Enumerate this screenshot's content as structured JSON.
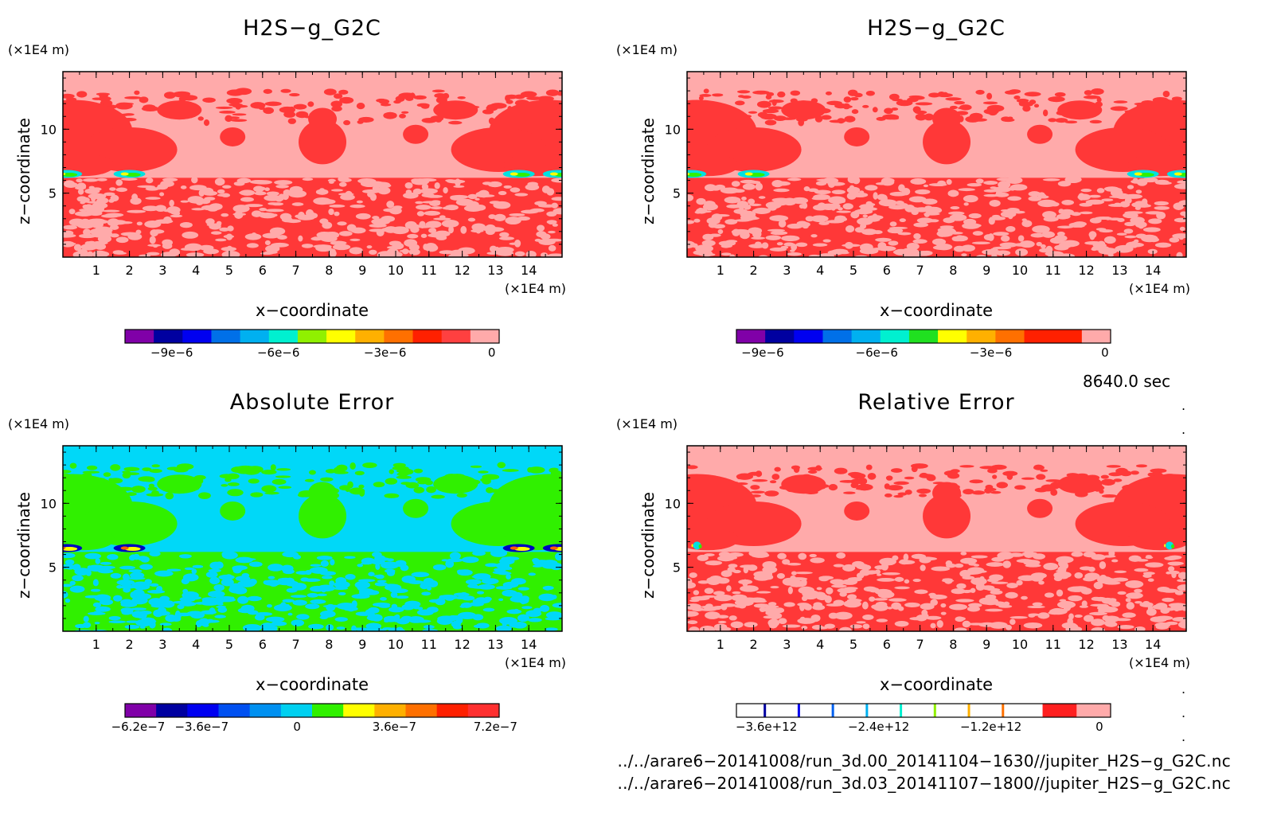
{
  "panels": [
    {
      "id": "p1",
      "title": "H2S−g_G2C",
      "z_unit": "(×1E4 m)",
      "x_unit": "(×1E4 m)",
      "xlabel": "x−coordinate",
      "ylabel": "z−coordinate",
      "field_colors": [
        "#ff3838",
        "#ffaaaa"
      ],
      "colorbar": {
        "colors": [
          "#8000a8",
          "#0000a0",
          "#0000f0",
          "#0070e8",
          "#00b0f0",
          "#00f0d0",
          "#90f000",
          "#ffff00",
          "#ffb000",
          "#ff7000",
          "#ff2000",
          "#ff4040",
          "#ffaaaa"
        ],
        "labels": [
          "−9e−6",
          "−6e−6",
          "−3e−6",
          "0"
        ],
        "label_pos": [
          0.125,
          0.41,
          0.695,
          0.98
        ]
      }
    },
    {
      "id": "p2",
      "title": "H2S−g_G2C",
      "z_unit": "(×1E4 m)",
      "x_unit": "(×1E4 m)",
      "xlabel": "x−coordinate",
      "ylabel": "z−coordinate",
      "field_colors": [
        "#ff3838",
        "#ffaaaa"
      ],
      "colorbar": {
        "colors": [
          "#8000a8",
          "#0000a0",
          "#0000f0",
          "#0070e8",
          "#00b0f0",
          "#00f0d0",
          "#20e020",
          "#ffff00",
          "#ffb000",
          "#ff7000",
          "#ff2000",
          "#ff2000",
          "#ffaaaa"
        ],
        "labels": [
          "−9e−6",
          "−6e−6",
          "−3e−6",
          "0"
        ],
        "label_pos": [
          0.07,
          0.375,
          0.68,
          0.985
        ]
      }
    },
    {
      "id": "p3",
      "title": "Absolute Error",
      "z_unit": "(×1E4 m)",
      "x_unit": "(×1E4 m)",
      "xlabel": "x−coordinate",
      "ylabel": "z−coordinate",
      "field_colors": [
        "#30f000",
        "#00d8f8"
      ],
      "colorbar": {
        "colors": [
          "#8000a8",
          "#0000a0",
          "#0000f0",
          "#0050f0",
          "#0090f0",
          "#00d0f0",
          "#30f000",
          "#ffff00",
          "#ffb000",
          "#ff7000",
          "#ff2000",
          "#ff3030"
        ],
        "labels": [
          "−6.2e−7",
          "−3.6e−7",
          "0",
          "3.6e−7",
          "7.2e−7"
        ],
        "label_pos": [
          0.035,
          0.205,
          0.46,
          0.72,
          0.99
        ]
      }
    },
    {
      "id": "p4",
      "title": "Relative Error",
      "z_unit": "(×1E4 m)",
      "x_unit": "(×1E4 m)",
      "xlabel": "x−coordinate",
      "ylabel": "z−coordinate",
      "field_colors": [
        "#ff3838",
        "#ffaaaa"
      ],
      "colorbar": {
        "colors": [
          "#ffffff",
          "#ffffff",
          "#ffffff",
          "#ffffff",
          "#ffffff",
          "#ffffff",
          "#ffffff",
          "#ffffff",
          "#ffffff",
          "#ff2020",
          "#ffaaaa"
        ],
        "stripes": [
          "#0000a0",
          "#0000f0",
          "#0060f0",
          "#00b0f0",
          "#00f0d0",
          "#90f000",
          "#ffb000",
          "#ff7000"
        ],
        "labels": [
          "−3.6e+12",
          "−2.4e+12",
          "−1.2e+12",
          "0"
        ],
        "label_pos": [
          0.08,
          0.38,
          0.68,
          0.97
        ]
      }
    }
  ],
  "chart_data": {
    "type": "heatmap",
    "x_ticks": [
      1,
      2,
      3,
      4,
      5,
      6,
      7,
      8,
      9,
      10,
      11,
      12,
      13,
      14
    ],
    "z_ticks": [
      5,
      10
    ],
    "xlim": [
      0,
      15
    ],
    "zlim": [
      0,
      14.5
    ],
    "panels": [
      "H2S−g_G2C",
      "H2S−g_G2C",
      "Absolute Error",
      "Relative Error"
    ]
  },
  "time_label": "8640.0 sec",
  "file_paths": [
    "../../arare6−20141008/run_3d.00_20141104−1630//jupiter_H2S−g_G2C.nc",
    "../../arare6−20141008/run_3d.03_20141107−1800//jupiter_H2S−g_G2C.nc"
  ]
}
